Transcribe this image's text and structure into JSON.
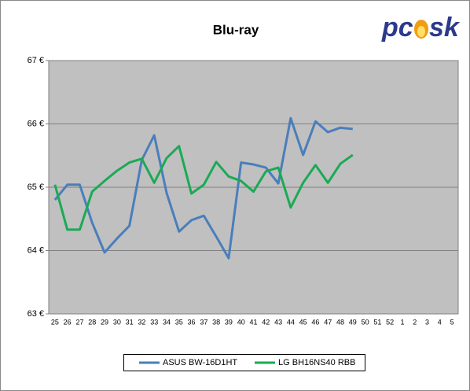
{
  "chart_data": {
    "type": "line",
    "title": "Blu-ray",
    "logo": [
      "pc",
      "sk"
    ],
    "categories": [
      "25",
      "26",
      "27",
      "28",
      "29",
      "30",
      "31",
      "32",
      "33",
      "34",
      "35",
      "36",
      "37",
      "38",
      "39",
      "40",
      "41",
      "42",
      "43",
      "44",
      "45",
      "46",
      "47",
      "48",
      "49",
      "50",
      "51",
      "52",
      "1",
      "2",
      "3",
      "4",
      "5"
    ],
    "series": [
      {
        "name": "ASUS BW-16D1HT",
        "color": "#4a7ebb",
        "values": [
          64.8,
          65.04,
          65.04,
          64.44,
          63.97,
          64.19,
          64.39,
          65.43,
          65.82,
          64.91,
          64.3,
          64.48,
          64.55,
          64.22,
          63.88,
          65.39,
          65.36,
          65.31,
          65.06,
          66.09,
          65.51,
          66.04,
          65.87,
          65.94,
          65.92,
          null,
          null,
          null,
          null,
          null,
          null,
          null,
          null
        ]
      },
      {
        "name": "LG BH16NS40 RBB",
        "color": "#1aaa55",
        "values": [
          65.04,
          64.33,
          64.33,
          64.93,
          65.1,
          65.26,
          65.39,
          65.45,
          65.07,
          65.46,
          65.65,
          64.9,
          65.04,
          65.4,
          65.17,
          65.1,
          64.93,
          65.25,
          65.31,
          64.68,
          65.07,
          65.35,
          65.07,
          65.37,
          65.51,
          null,
          null,
          null,
          null,
          null,
          null,
          null,
          null
        ]
      }
    ],
    "ylim": [
      63,
      67
    ],
    "yticks": [
      {
        "value": 63,
        "label": "63 €"
      },
      {
        "value": 64,
        "label": "64 €"
      },
      {
        "value": 65,
        "label": "65 €"
      },
      {
        "value": 66,
        "label": "66 €"
      },
      {
        "value": 67,
        "label": "67 €"
      }
    ],
    "grid": true
  }
}
